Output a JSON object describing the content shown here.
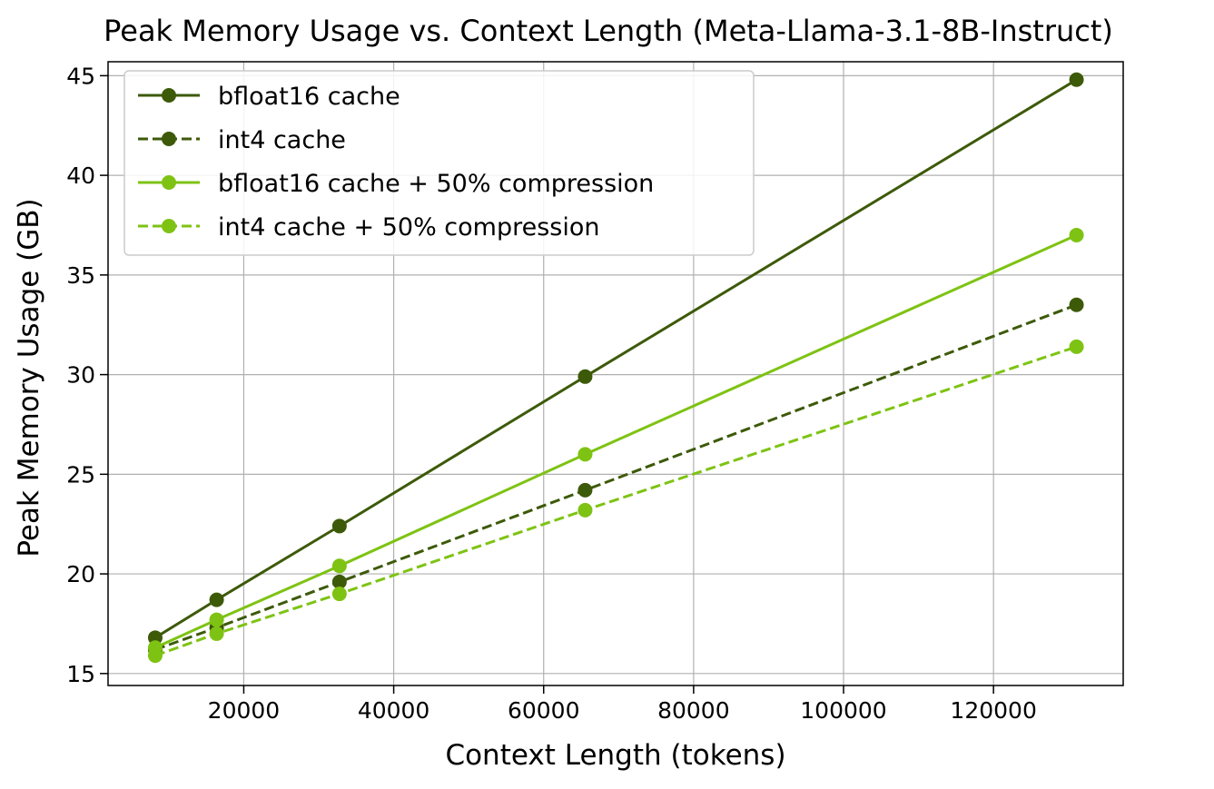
{
  "chart_data": {
    "type": "line",
    "title": "Peak Memory Usage vs. Context Length (Meta-Llama-3.1-8B-Instruct)",
    "xlabel": "Context Length (tokens)",
    "ylabel": "Peak Memory Usage (GB)",
    "x": [
      8192,
      16384,
      32768,
      65536,
      131072
    ],
    "xlim": [
      1900,
      137300
    ],
    "ylim": [
      14.4,
      45.7
    ],
    "xticks": [
      20000,
      40000,
      60000,
      80000,
      100000,
      120000
    ],
    "xtick_labels": [
      "20000",
      "40000",
      "60000",
      "80000",
      "100000",
      "120000"
    ],
    "yticks": [
      15,
      20,
      25,
      30,
      35,
      40,
      45
    ],
    "ytick_labels": [
      "15",
      "20",
      "25",
      "30",
      "35",
      "40",
      "45"
    ],
    "grid": true,
    "legend_position": "top-left",
    "series": [
      {
        "name": "bfloat16 cache",
        "values": [
          16.8,
          18.7,
          22.4,
          29.9,
          44.8
        ],
        "color": "#3d5a09",
        "line_style": "solid",
        "marker": "circle"
      },
      {
        "name": "int4 cache",
        "values": [
          16.2,
          17.3,
          19.6,
          24.2,
          33.5
        ],
        "color": "#3d5a09",
        "line_style": "dashed",
        "marker": "circle"
      },
      {
        "name": "bfloat16 cache + 50% compression",
        "values": [
          16.3,
          17.7,
          20.4,
          26.0,
          37.0
        ],
        "color": "#7ec313",
        "line_style": "solid",
        "marker": "circle"
      },
      {
        "name": "int4 cache + 50% compression",
        "values": [
          15.9,
          17.0,
          19.0,
          23.2,
          31.4
        ],
        "color": "#7ec313",
        "line_style": "dashed",
        "marker": "circle"
      }
    ]
  }
}
